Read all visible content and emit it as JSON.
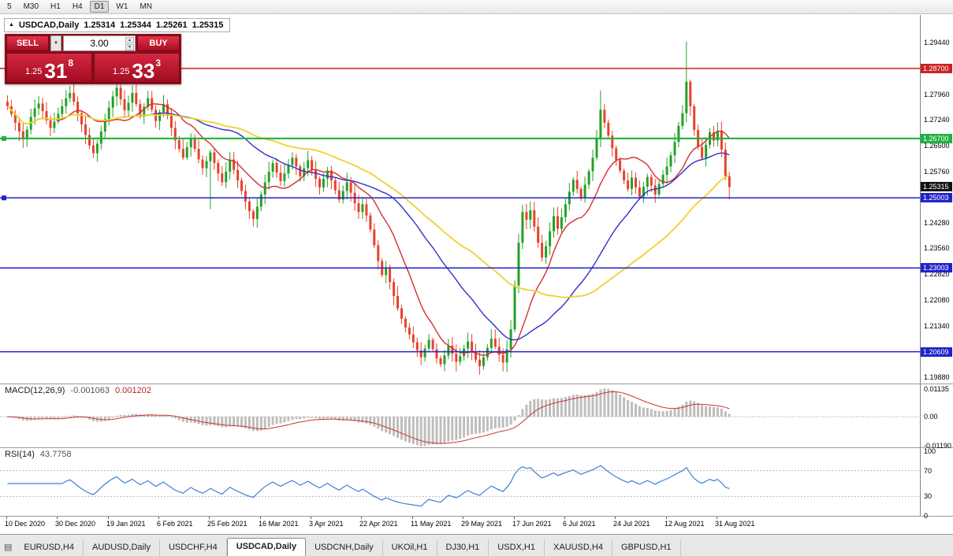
{
  "icons": {
    "chart_marker": "▲",
    "dropdown": "▼",
    "stepper_up": "▲",
    "stepper_down": "▼",
    "charts_list": "▤"
  },
  "toolbar": {
    "timeframes": [
      {
        "label": "5",
        "active": false
      },
      {
        "label": "M30",
        "active": false
      },
      {
        "label": "H1",
        "active": false
      },
      {
        "label": "H4",
        "active": false
      },
      {
        "label": "D1",
        "active": true
      },
      {
        "label": "W1",
        "active": false
      },
      {
        "label": "MN",
        "active": false
      }
    ]
  },
  "chart_header": {
    "title": "USDCAD,Daily",
    "open": "1.25314",
    "high": "1.25344",
    "low": "1.25261",
    "close": "1.25315"
  },
  "trade_panel": {
    "sell_label": "SELL",
    "buy_label": "BUY",
    "volume": "3.00",
    "sell_price": {
      "prefix": "1.25",
      "pips": "31",
      "point": "8"
    },
    "buy_price": {
      "prefix": "1.25",
      "pips": "33",
      "point": "3"
    }
  },
  "macd_panel": {
    "name": "MACD(12,26,9)",
    "main_value": "-0.001063",
    "signal_value": "0.001202",
    "axis": [
      {
        "text": "0.01135",
        "value": 0.01135
      },
      {
        "text": "0.00",
        "value": 0
      },
      {
        "text": "-0.01190",
        "value": -0.0119
      }
    ]
  },
  "rsi_panel": {
    "name": "RSI(14)",
    "value": "43.7758",
    "axis": [
      {
        "text": "100",
        "value": 100
      },
      {
        "text": "70",
        "value": 70
      },
      {
        "text": "30",
        "value": 30
      },
      {
        "text": "0",
        "value": 0
      }
    ]
  },
  "price_axis": {
    "plain": [
      {
        "text": "1.29440",
        "price": 1.2944
      },
      {
        "text": "1.27960",
        "price": 1.2796
      },
      {
        "text": "1.27240",
        "price": 1.2724
      },
      {
        "text": "1.26500",
        "price": 1.265
      },
      {
        "text": "1.25760",
        "price": 1.2576
      },
      {
        "text": "1.24280",
        "price": 1.2428
      },
      {
        "text": "1.23560",
        "price": 1.2356
      },
      {
        "text": "1.22820",
        "price": 1.2282
      },
      {
        "text": "1.22080",
        "price": 1.2208
      },
      {
        "text": "1.21340",
        "price": 1.2134
      },
      {
        "text": "1.19880",
        "price": 1.1988
      }
    ],
    "badges": [
      {
        "text": "1.28700",
        "price": 1.287,
        "color": "#cc2222"
      },
      {
        "text": "1.26700",
        "price": 1.267,
        "color": "#1fb141"
      },
      {
        "text": "1.25315",
        "price": 1.25315,
        "color": "#111111"
      },
      {
        "text": "1.25003",
        "price": 1.25003,
        "color": "#2222cc"
      },
      {
        "text": "1.23003",
        "price": 1.23003,
        "color": "#2222cc"
      },
      {
        "text": "1.20609",
        "price": 1.20609,
        "color": "#2222cc"
      }
    ]
  },
  "tabs": [
    {
      "label": "EURUSD,H4",
      "active": false
    },
    {
      "label": "AUDUSD,Daily",
      "active": false
    },
    {
      "label": "USDCHF,H4",
      "active": false
    },
    {
      "label": "USDCAD,Daily",
      "active": true
    },
    {
      "label": "USDCNH,Daily",
      "active": false
    },
    {
      "label": "UKOil,H1",
      "active": false
    },
    {
      "label": "DJ30,H1",
      "active": false
    },
    {
      "label": "USDX,H1",
      "active": false
    },
    {
      "label": "XAUUSD,H4",
      "active": false
    },
    {
      "label": "GBPUSD,H1",
      "active": false
    }
  ],
  "chart_data": {
    "type": "candlestick",
    "symbol": "USDCAD",
    "timeframe": "Daily",
    "ylim": [
      1.197,
      1.2998
    ],
    "current_price": 1.25315,
    "up_color": "#23a127",
    "down_color": "#e8422c",
    "macd_bar_color": "#bdbdbd",
    "macd_signal_color": "#cc3333",
    "rsi_color": "#3e7fd6",
    "open_first": 1.2775,
    "closes": [
      1.2762,
      1.274,
      1.2715,
      1.269,
      1.2668,
      1.2695,
      1.2732,
      1.2756,
      1.277,
      1.2748,
      1.2722,
      1.27,
      1.2718,
      1.274,
      1.2762,
      1.2785,
      1.28,
      1.2775,
      1.2742,
      1.271,
      1.268,
      1.265,
      1.2628,
      1.2655,
      1.269,
      1.2725,
      1.2758,
      1.279,
      1.2815,
      1.2782,
      1.275,
      1.2772,
      1.28,
      1.2768,
      1.2738,
      1.276,
      1.2785,
      1.2752,
      1.272,
      1.2745,
      1.2768,
      1.2735,
      1.27,
      1.2665,
      1.264,
      1.2615,
      1.2645,
      1.2672,
      1.264,
      1.261,
      1.2585,
      1.2605,
      1.263,
      1.26,
      1.257,
      1.2545,
      1.2575,
      1.261,
      1.258,
      1.255,
      1.252,
      1.249,
      1.2462,
      1.244,
      1.2475,
      1.251,
      1.2545,
      1.2575,
      1.26,
      1.2572,
      1.2548,
      1.257,
      1.2595,
      1.2615,
      1.259,
      1.2562,
      1.2585,
      1.2608,
      1.258,
      1.2555,
      1.253,
      1.2555,
      1.2578,
      1.255,
      1.2522,
      1.2495,
      1.252,
      1.2545,
      1.2515,
      1.2485,
      1.246,
      1.2482,
      1.245,
      1.241,
      1.2365,
      1.232,
      1.228,
      1.23,
      1.226,
      1.222,
      1.2185,
      1.2155,
      1.213,
      1.211,
      1.2088,
      1.2065,
      1.2045,
      1.207,
      1.2095,
      1.2068,
      1.2042,
      1.2025,
      1.205,
      1.2078,
      1.2055,
      1.2032,
      1.2048,
      1.207,
      1.209,
      1.2062,
      1.2038,
      1.202,
      1.2045,
      1.2072,
      1.2098,
      1.2075,
      1.2052,
      1.203,
      1.2068,
      1.2125,
      1.225,
      1.2372,
      1.246,
      1.2438,
      1.2465,
      1.2418,
      1.2372,
      1.233,
      1.2362,
      1.2405,
      1.2448,
      1.2412,
      1.2445,
      1.2482,
      1.2518,
      1.2552,
      1.2526,
      1.25,
      1.2538,
      1.2576,
      1.2615,
      1.2672,
      1.2752,
      1.2715,
      1.2678,
      1.2642,
      1.2608,
      1.2578,
      1.255,
      1.2526,
      1.2558,
      1.253,
      1.2504,
      1.2532,
      1.256,
      1.2536,
      1.251,
      1.254,
      1.2566,
      1.259,
      1.2622,
      1.266,
      1.2706,
      1.2742,
      1.2832,
      1.2762,
      1.2694,
      1.2646,
      1.2614,
      1.2652,
      1.2688,
      1.2664,
      1.2692,
      1.2638,
      1.2562,
      1.25315
    ],
    "wick_overrides": [
      {
        "i": 28,
        "high": 1.2843
      },
      {
        "i": 52,
        "low": 1.2468
      },
      {
        "i": 152,
        "high": 1.2807
      },
      {
        "i": 174,
        "high": 1.2947
      },
      {
        "i": 185,
        "low": 1.2496
      }
    ],
    "moving_averages": [
      {
        "period": 13,
        "color": "#d42f2f",
        "width": 1.4
      },
      {
        "period": 34,
        "color": "#3030c8",
        "width": 1.4
      },
      {
        "period": 55,
        "color": "#f0d030",
        "width": 1.8
      }
    ],
    "hlines": [
      {
        "price": 1.287,
        "color": "#cc2222",
        "width": 1.5,
        "handle": false
      },
      {
        "price": 1.267,
        "color": "#1fb141",
        "width": 2.2,
        "handle": true
      },
      {
        "price": 1.25003,
        "color": "#2222cc",
        "width": 1.5,
        "handle": true
      },
      {
        "price": 1.23003,
        "color": "#2222cc",
        "width": 1.5,
        "handle": false
      },
      {
        "price": 1.20609,
        "color": "#2222cc",
        "width": 1.5,
        "handle": false
      }
    ],
    "macd": {
      "fast": 12,
      "slow": 26,
      "signal": 9,
      "range": [
        -0.0119,
        0.01135
      ]
    },
    "rsi": {
      "period": 14,
      "levels": [
        70,
        30
      ],
      "range": [
        0,
        100
      ]
    },
    "label_stride": 13,
    "x_labels": [
      "10 Dec 2020",
      "30 Dec 2020",
      "19 Jan 2021",
      "6 Feb 2021",
      "25 Feb 2021",
      "16 Mar 2021",
      "3 Apr 2021",
      "22 Apr 2021",
      "11 May 2021",
      "29 May 2021",
      "17 Jun 2021",
      "6 Jul 2021",
      "24 Jul 2021",
      "12 Aug 2021",
      "31 Aug 2021"
    ]
  }
}
